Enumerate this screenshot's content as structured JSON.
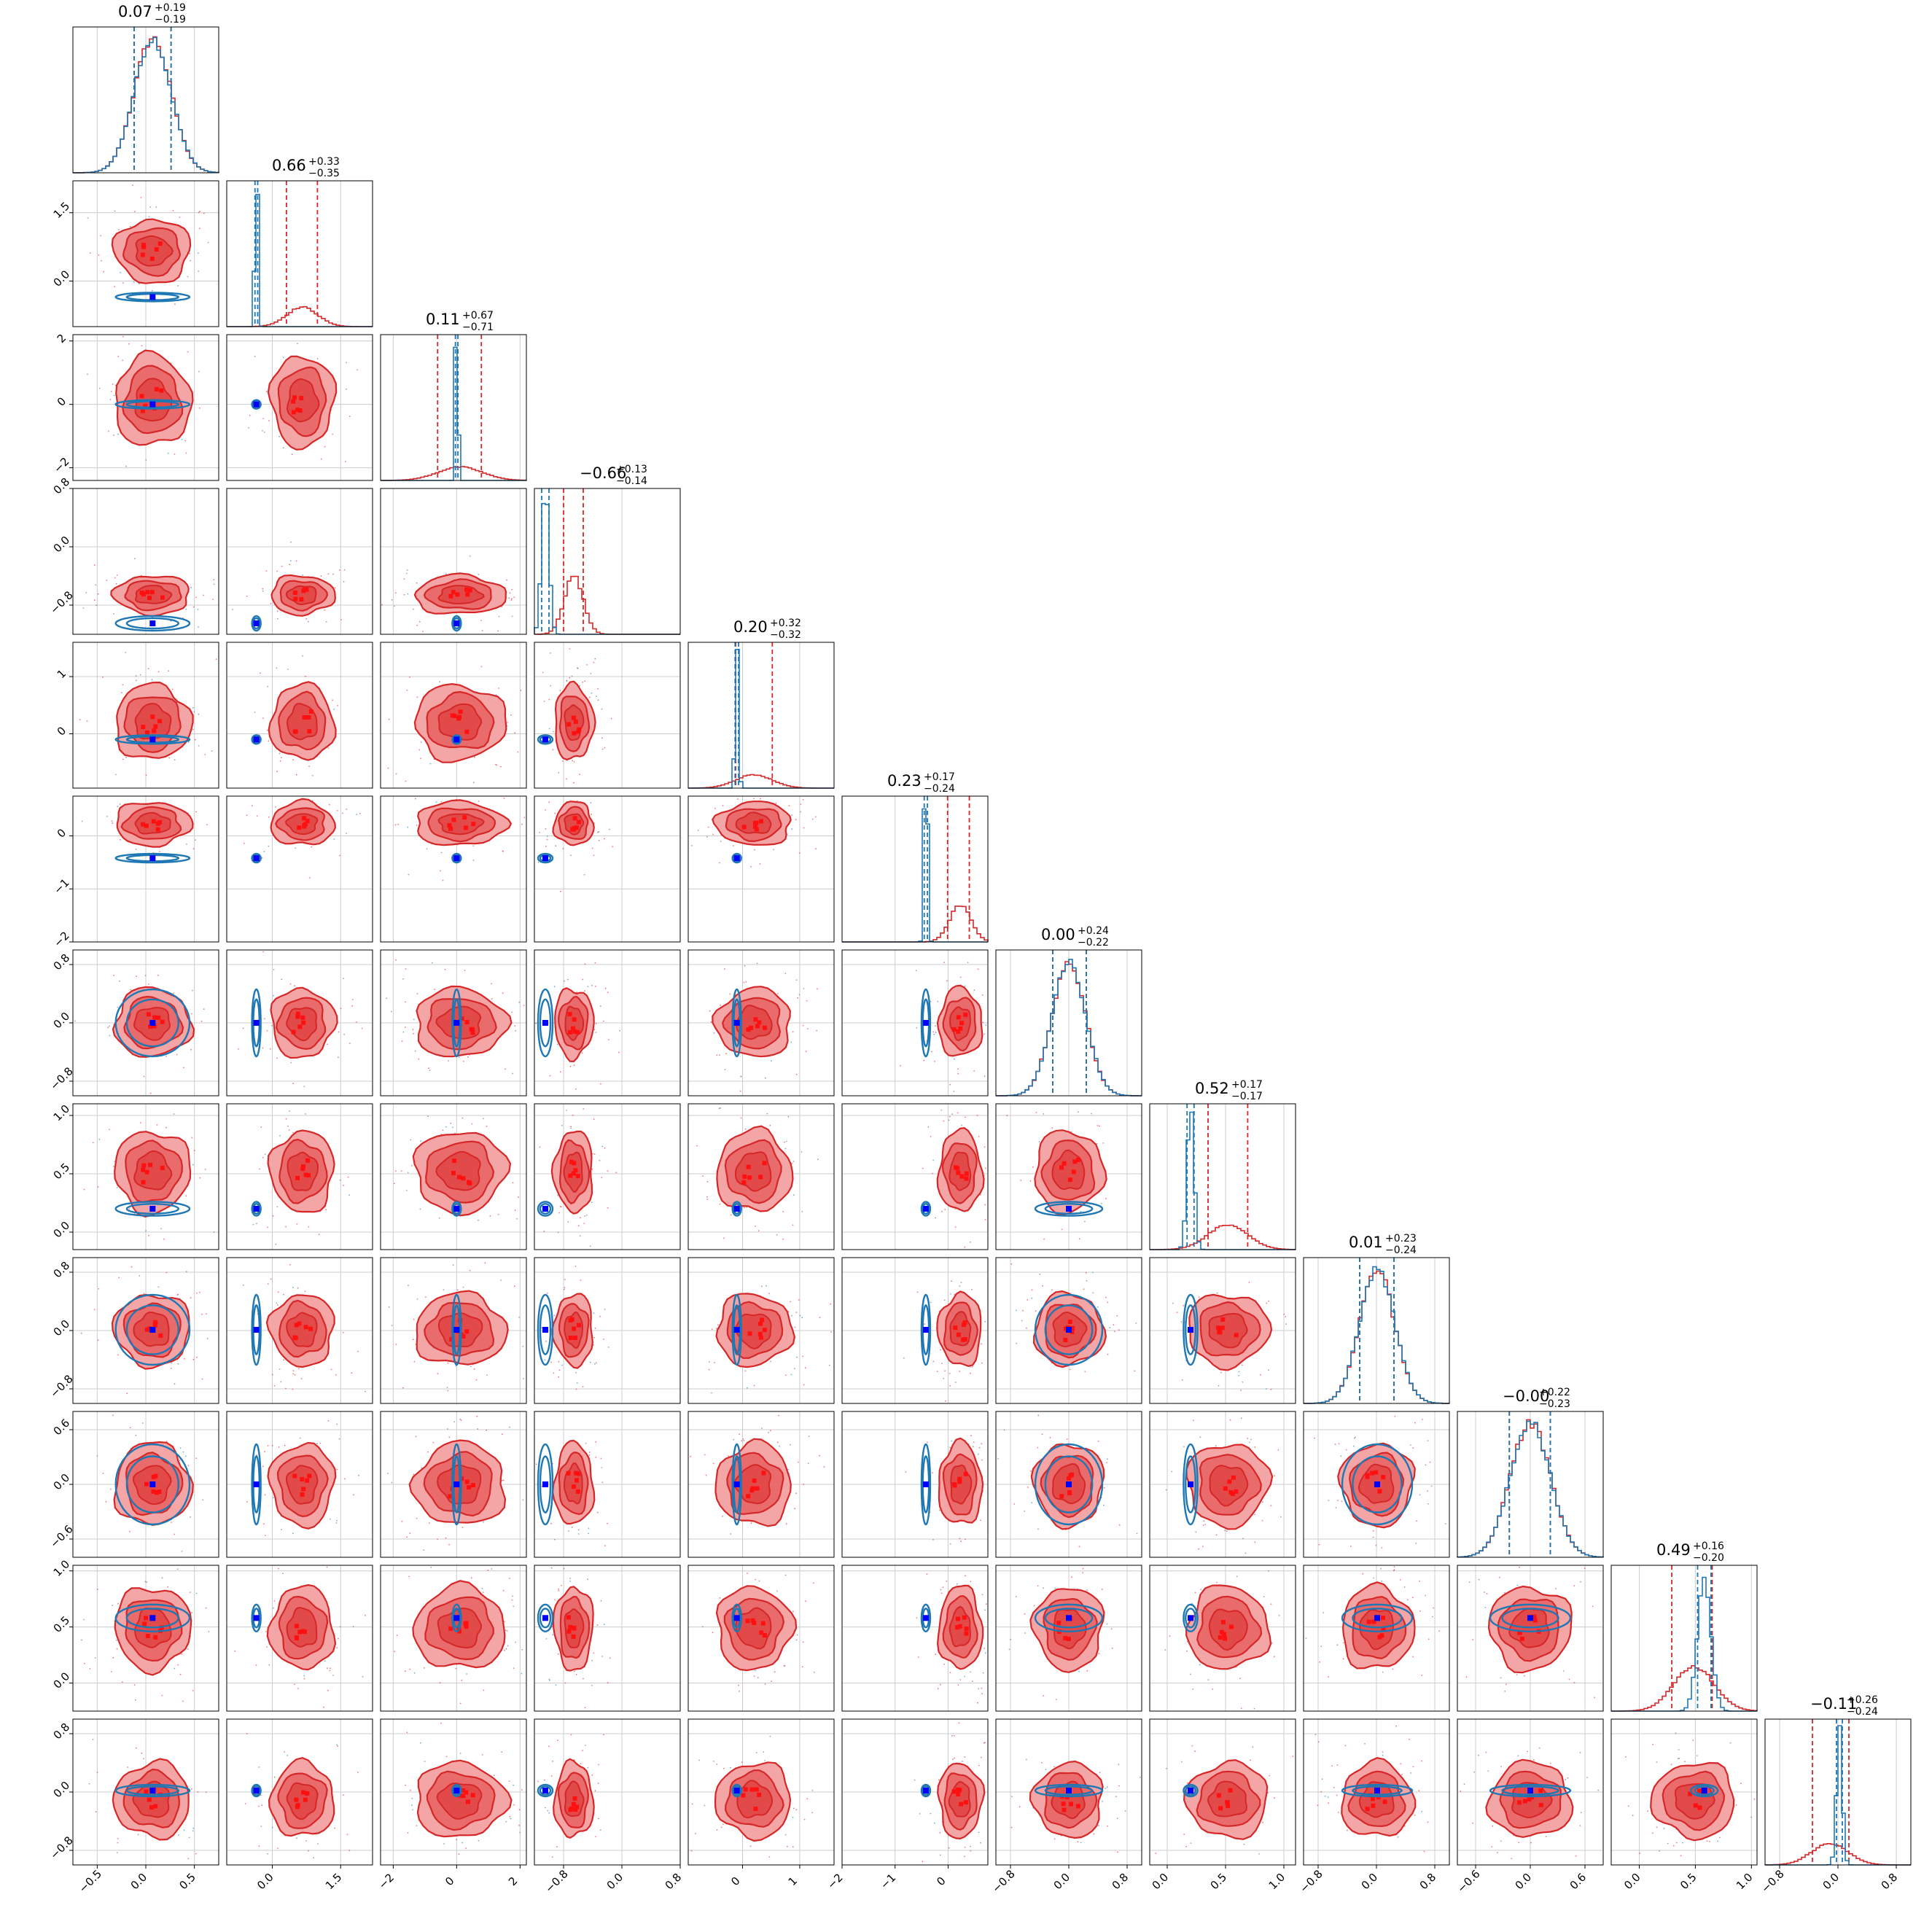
{
  "chart_data": {
    "type": "corner",
    "n_params": 12,
    "titles": [
      {
        "median": "0.07",
        "plus": "+0.19",
        "minus": "−0.19"
      },
      {
        "median": "0.66",
        "plus": "+0.33",
        "minus": "−0.35"
      },
      {
        "median": "0.11",
        "plus": "+0.67",
        "minus": "−0.71"
      },
      {
        "median": "−0.66",
        "plus": "+0.13",
        "minus": "−0.14"
      },
      {
        "median": "0.20",
        "plus": "+0.32",
        "minus": "−0.32"
      },
      {
        "median": "0.23",
        "plus": "+0.17",
        "minus": "−0.24"
      },
      {
        "median": "0.00",
        "plus": "+0.24",
        "minus": "−0.22"
      },
      {
        "median": "0.52",
        "plus": "+0.17",
        "minus": "−0.17"
      },
      {
        "median": "0.01",
        "plus": "+0.23",
        "minus": "−0.24"
      },
      {
        "median": "−0.00",
        "plus": "+0.22",
        "minus": "−0.23"
      },
      {
        "median": "0.49",
        "plus": "+0.16",
        "minus": "−0.20"
      },
      {
        "median": "−0.11",
        "plus": "+0.26",
        "minus": "−0.24"
      }
    ],
    "params": [
      {
        "range": [
          -0.75,
          0.75
        ],
        "ticks": [
          -0.5,
          0.0,
          0.5
        ],
        "tick_labels": [
          "−0.5",
          "0.0",
          "0.5"
        ],
        "red": {
          "mu": 0.07,
          "sd": 0.19,
          "q": [
            -0.12,
            0.26
          ]
        },
        "blue": {
          "mu": 0.07,
          "sd": 0.19,
          "q": [
            -0.12,
            0.26
          ]
        },
        "truth": 0.07
      },
      {
        "range": [
          -1.0,
          2.2
        ],
        "ticks": [
          0.0,
          1.5
        ],
        "tick_labels": [
          "0.0",
          "1.5"
        ],
        "red": {
          "mu": 0.66,
          "sd": 0.34,
          "q": [
            0.31,
            0.99
          ]
        },
        "blue": {
          "mu": -0.35,
          "sd": 0.03,
          "q": [
            -0.38,
            -0.32
          ]
        },
        "truth": -0.35
      },
      {
        "range": [
          -2.4,
          2.2
        ],
        "ticks": [
          -2,
          0,
          2
        ],
        "tick_labels": [
          "−2",
          "0",
          "2"
        ],
        "red": {
          "mu": 0.11,
          "sd": 0.7,
          "q": [
            -0.6,
            0.78
          ]
        },
        "blue": {
          "mu": 0.0,
          "sd": 0.04,
          "q": [
            -0.04,
            0.04
          ]
        },
        "truth": 0.0
      },
      {
        "range": [
          -1.2,
          0.8
        ],
        "ticks": [
          -0.8,
          0.0,
          0.8
        ],
        "tick_labels": [
          "−0.8",
          "0.0",
          "0.8"
        ],
        "red": {
          "mu": -0.66,
          "sd": 0.13,
          "q": [
            -0.8,
            -0.53
          ]
        },
        "blue": {
          "mu": -1.05,
          "sd": 0.05,
          "q": [
            -1.1,
            -1.0
          ]
        },
        "truth": -1.05
      },
      {
        "range": [
          -0.95,
          1.6
        ],
        "ticks": [
          0,
          1
        ],
        "tick_labels": [
          "0",
          "1"
        ],
        "red": {
          "mu": 0.2,
          "sd": 0.32,
          "q": [
            -0.12,
            0.52
          ]
        },
        "blue": {
          "mu": -0.1,
          "sd": 0.03,
          "q": [
            -0.13,
            -0.07
          ]
        },
        "truth": -0.1
      },
      {
        "range": [
          -2.0,
          0.75
        ],
        "ticks": [
          -2,
          -1,
          0
        ],
        "tick_labels": [
          "−2",
          "−1",
          "0"
        ],
        "red": {
          "mu": 0.23,
          "sd": 0.2,
          "q": [
            -0.01,
            0.4
          ]
        },
        "blue": {
          "mu": -0.42,
          "sd": 0.03,
          "q": [
            -0.45,
            -0.39
          ]
        },
        "truth": -0.42
      },
      {
        "range": [
          -1.0,
          1.0
        ],
        "ticks": [
          -0.8,
          0.0,
          0.8
        ],
        "tick_labels": [
          "−0.8",
          "0.0",
          "0.8"
        ],
        "red": {
          "mu": 0.0,
          "sd": 0.23,
          "q": [
            -0.22,
            0.24
          ]
        },
        "blue": {
          "mu": 0.0,
          "sd": 0.23,
          "q": [
            -0.22,
            0.24
          ]
        },
        "truth": 0.0
      },
      {
        "range": [
          -0.15,
          1.1
        ],
        "ticks": [
          0.0,
          0.5,
          1.0
        ],
        "tick_labels": [
          "0.0",
          "0.5",
          "1.0"
        ],
        "red": {
          "mu": 0.52,
          "sd": 0.17,
          "q": [
            0.35,
            0.69
          ]
        },
        "blue": {
          "mu": 0.2,
          "sd": 0.03,
          "q": [
            0.17,
            0.23
          ]
        },
        "truth": 0.2
      },
      {
        "range": [
          -1.0,
          1.0
        ],
        "ticks": [
          -0.8,
          0.0,
          0.8
        ],
        "tick_labels": [
          "−0.8",
          "0.0",
          "0.8"
        ],
        "red": {
          "mu": 0.01,
          "sd": 0.24,
          "q": [
            -0.23,
            0.24
          ]
        },
        "blue": {
          "mu": 0.01,
          "sd": 0.24,
          "q": [
            -0.23,
            0.24
          ]
        },
        "truth": 0.01
      },
      {
        "range": [
          -0.8,
          0.8
        ],
        "ticks": [
          -0.6,
          0.0,
          0.6
        ],
        "tick_labels": [
          "−0.6",
          "0.0",
          "0.6"
        ],
        "red": {
          "mu": 0.0,
          "sd": 0.22,
          "q": [
            -0.23,
            0.22
          ]
        },
        "blue": {
          "mu": 0.0,
          "sd": 0.22,
          "q": [
            -0.23,
            0.22
          ]
        },
        "truth": 0.0
      },
      {
        "range": [
          -0.25,
          1.05
        ],
        "ticks": [
          0.0,
          0.5,
          1.0
        ],
        "tick_labels": [
          "0.0",
          "0.5",
          "1.0"
        ],
        "red": {
          "mu": 0.49,
          "sd": 0.18,
          "q": [
            0.29,
            0.65
          ]
        },
        "blue": {
          "mu": 0.58,
          "sd": 0.06,
          "q": [
            0.52,
            0.64
          ]
        },
        "truth": 0.58
      },
      {
        "range": [
          -1.0,
          1.0
        ],
        "ticks": [
          -0.8,
          0.0,
          0.8
        ],
        "tick_labels": [
          "−0.8",
          "0.0",
          "0.8"
        ],
        "red": {
          "mu": -0.11,
          "sd": 0.25,
          "q": [
            -0.35,
            0.15
          ]
        },
        "blue": {
          "mu": 0.02,
          "sd": 0.04,
          "q": [
            -0.02,
            0.06
          ]
        },
        "truth": 0.02
      }
    ],
    "colors": {
      "red": "#d62728",
      "red_light": "#f4a6a6",
      "red_mid": "#e24a4a",
      "blue": "#1f77b4",
      "truth": "#0000ff",
      "grid": "#cccccc"
    }
  }
}
